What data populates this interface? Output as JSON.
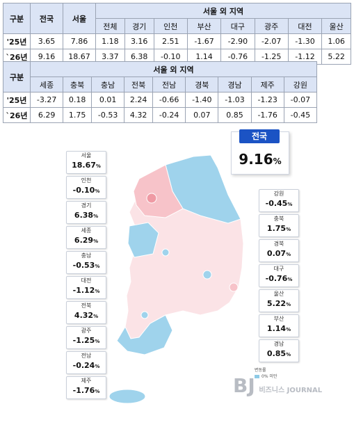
{
  "table1": {
    "col_group": "구분",
    "col_nation": "전국",
    "col_seoul": "서울",
    "region_group": "서울 외 지역",
    "regions": [
      "전체",
      "경기",
      "인천",
      "부산",
      "대구",
      "광주",
      "대전",
      "울산"
    ],
    "rows": [
      {
        "label": "'25년",
        "nation": "3.65",
        "seoul": "7.86",
        "values": [
          "1.18",
          "3.16",
          "2.51",
          "-1.67",
          "-2.90",
          "-2.07",
          "-1.30",
          "1.06"
        ]
      },
      {
        "label": "`26년",
        "nation": "9.16",
        "seoul": "18.67",
        "values": [
          "3.37",
          "6.38",
          "-0.10",
          "1.14",
          "-0.76",
          "-1.25",
          "-1.12",
          "5.22"
        ]
      }
    ]
  },
  "table2": {
    "col_group": "구분",
    "region_group": "서울 외 지역",
    "regions": [
      "세종",
      "충북",
      "충남",
      "전북",
      "전남",
      "경북",
      "경남",
      "제주",
      "강원"
    ],
    "rows": [
      {
        "label": "'25년",
        "values": [
          "-3.27",
          "0.18",
          "0.01",
          "2.24",
          "-0.66",
          "-1.40",
          "-1.03",
          "-1.23",
          "-0.07"
        ]
      },
      {
        "label": "`26년",
        "values": [
          "6.29",
          "1.75",
          "-0.53",
          "4.32",
          "-0.24",
          "0.07",
          "0.85",
          "-1.76",
          "-0.45"
        ]
      }
    ]
  },
  "national": {
    "label": "전국",
    "value": "9.16",
    "unit": "%"
  },
  "labels_left": [
    {
      "name": "서울",
      "value": "18.67",
      "unit": "%"
    },
    {
      "name": "인천",
      "value": "-0.10",
      "unit": "%"
    },
    {
      "name": "경기",
      "value": "6.38",
      "unit": "%"
    },
    {
      "name": "세종",
      "value": "6.29",
      "unit": "%"
    },
    {
      "name": "충남",
      "value": "-0.53",
      "unit": "%"
    },
    {
      "name": "대전",
      "value": "-1.12",
      "unit": "%"
    },
    {
      "name": "전북",
      "value": "4.32",
      "unit": "%"
    },
    {
      "name": "광주",
      "value": "-1.25",
      "unit": "%"
    },
    {
      "name": "전남",
      "value": "-0.24",
      "unit": "%"
    },
    {
      "name": "제주",
      "value": "-1.76",
      "unit": "%"
    }
  ],
  "labels_right": [
    {
      "name": "강원",
      "value": "-0.45",
      "unit": "%"
    },
    {
      "name": "충북",
      "value": "1.75",
      "unit": "%"
    },
    {
      "name": "경북",
      "value": "0.07",
      "unit": "%"
    },
    {
      "name": "대구",
      "value": "-0.76",
      "unit": "%"
    },
    {
      "name": "울산",
      "value": "5.22",
      "unit": "%"
    },
    {
      "name": "부산",
      "value": "1.14",
      "unit": "%"
    },
    {
      "name": "경남",
      "value": "0.85",
      "unit": "%"
    }
  ],
  "legend": {
    "title": "변동률",
    "items": [
      {
        "label": "0% 미만",
        "color": "#8ecae6"
      }
    ]
  },
  "colors": {
    "high": "#f7c3c9",
    "low": "#f9dfe2",
    "negative": "#9fd3ec",
    "national_tag": "#1b53c4"
  },
  "watermark": "비즈니스 JOURNAL"
}
